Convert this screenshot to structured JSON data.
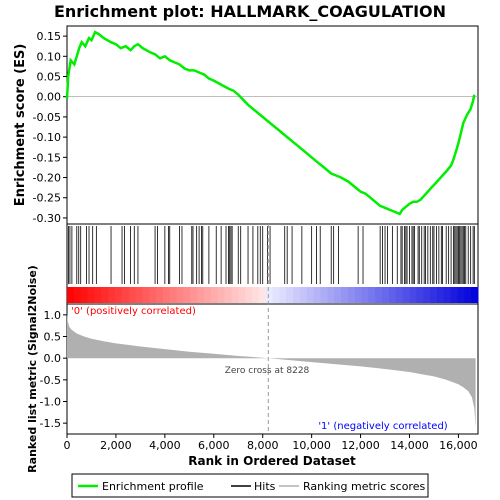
{
  "chart_data": {
    "type": "line",
    "title": "Enrichment plot: HALLMARK_COAGULATION",
    "xlabel": "Rank in Ordered Dataset",
    "x_range": [
      0,
      16800
    ],
    "x_ticks": [
      0,
      2000,
      4000,
      6000,
      8000,
      10000,
      12000,
      14000,
      16000
    ],
    "x_tick_labels": [
      "0",
      "2,000",
      "4,000",
      "6,000",
      "8,000",
      "10,000",
      "12,000",
      "14,000",
      "16,000"
    ],
    "es_panel": {
      "ylabel": "Enrichment score (ES)",
      "ylim": [
        -0.315,
        0.175
      ],
      "y_ticks": [
        0.15,
        0.1,
        0.05,
        0.0,
        -0.05,
        -0.1,
        -0.15,
        -0.2,
        -0.25,
        -0.3
      ],
      "y_tick_labels": [
        "0.15",
        "0.10",
        "0.05",
        "0.00",
        "-0.05",
        "-0.10",
        "-0.15",
        "-0.20",
        "-0.25",
        "-0.30"
      ],
      "grid": false,
      "series": [
        {
          "name": "Enrichment profile",
          "color": "#00ee00",
          "x": [
            0,
            50,
            150,
            300,
            400,
            500,
            600,
            750,
            900,
            1000,
            1150,
            1300,
            1500,
            1800,
            2000,
            2200,
            2400,
            2600,
            2750,
            2900,
            3100,
            3400,
            3600,
            3800,
            4000,
            4200,
            4400,
            4600,
            4800,
            5000,
            5200,
            5400,
            5600,
            5800,
            6000,
            6300,
            6600,
            6800,
            7000,
            7400,
            7800,
            8200,
            8600,
            9000,
            9400,
            9800,
            10200,
            10500,
            10800,
            11000,
            11200,
            11500,
            11800,
            12000,
            12200,
            12400,
            12600,
            12800,
            13000,
            13200,
            13400,
            13600,
            13700,
            13800,
            13900,
            14000,
            14150,
            14300,
            14450,
            14600,
            14750,
            14900,
            15050,
            15200,
            15350,
            15500,
            15700,
            15800,
            15900,
            16000,
            16100,
            16200,
            16350,
            16500,
            16600,
            16650
          ],
          "y": [
            -0.005,
            0.05,
            0.09,
            0.08,
            0.1,
            0.12,
            0.135,
            0.125,
            0.145,
            0.14,
            0.16,
            0.155,
            0.145,
            0.135,
            0.13,
            0.12,
            0.125,
            0.115,
            0.125,
            0.13,
            0.12,
            0.11,
            0.105,
            0.095,
            0.1,
            0.09,
            0.085,
            0.08,
            0.07,
            0.065,
            0.065,
            0.06,
            0.055,
            0.045,
            0.04,
            0.03,
            0.02,
            0.015,
            0.005,
            -0.02,
            -0.04,
            -0.06,
            -0.08,
            -0.1,
            -0.12,
            -0.14,
            -0.16,
            -0.175,
            -0.19,
            -0.195,
            -0.2,
            -0.21,
            -0.225,
            -0.235,
            -0.24,
            -0.25,
            -0.26,
            -0.27,
            -0.275,
            -0.28,
            -0.285,
            -0.29,
            -0.28,
            -0.275,
            -0.27,
            -0.265,
            -0.26,
            -0.26,
            -0.255,
            -0.245,
            -0.235,
            -0.225,
            -0.215,
            -0.205,
            -0.195,
            -0.185,
            -0.17,
            -0.155,
            -0.135,
            -0.115,
            -0.09,
            -0.065,
            -0.045,
            -0.03,
            -0.01,
            0.005
          ]
        }
      ]
    },
    "hits_panel": {
      "label": "Hits",
      "hit_positions": [
        60,
        120,
        200,
        400,
        480,
        560,
        800,
        900,
        1050,
        1200,
        1800,
        2250,
        2350,
        2600,
        2750,
        2900,
        3600,
        3700,
        4000,
        4150,
        4200,
        4600,
        4700,
        5100,
        5150,
        5300,
        5400,
        5500,
        5550,
        5800,
        6100,
        6300,
        6500,
        6600,
        6650,
        6700,
        6750,
        7000,
        7100,
        7400,
        7600,
        7800,
        7900,
        8000,
        8200,
        8300,
        8900,
        9000,
        9200,
        9600,
        10000,
        10200,
        10350,
        10800,
        10900,
        11100,
        11900,
        12100,
        12800,
        12900,
        13000,
        13100,
        13300,
        13500,
        13650,
        13700,
        13800,
        13850,
        13900,
        14000,
        14100,
        14150,
        14200,
        14350,
        14400,
        14500,
        14600,
        14650,
        14750,
        14850,
        14950,
        15000,
        15100,
        15200,
        15300,
        15350,
        15500,
        15600,
        15700,
        15800,
        15850,
        15900,
        15950,
        16000,
        16050,
        16100,
        16150,
        16200,
        16250,
        16300,
        16400,
        16500,
        16600,
        16650
      ]
    },
    "ranking_panel": {
      "ylabel": "Ranked list metric (Signal2Noise)",
      "ylim": [
        -1.75,
        1.25
      ],
      "y_ticks": [
        1.0,
        0.5,
        0.0,
        -0.5,
        -1.0,
        -1.5
      ],
      "y_tick_labels": [
        "1.0",
        "0.5",
        "0.0",
        "-0.5",
        "-1.0",
        "-1.5"
      ],
      "series_name": "Ranking metric scores",
      "x": [
        0,
        30,
        100,
        200,
        400,
        700,
        1000,
        1500,
        2000,
        3000,
        4000,
        5000,
        6000,
        7000,
        8000,
        8228,
        9000,
        10000,
        11000,
        12000,
        13000,
        14000,
        14500,
        15000,
        15500,
        16000,
        16200,
        16400,
        16550,
        16650,
        16700
      ],
      "y": [
        1.05,
        0.85,
        0.72,
        0.65,
        0.57,
        0.5,
        0.45,
        0.39,
        0.34,
        0.27,
        0.21,
        0.15,
        0.1,
        0.05,
        0.01,
        0.0,
        -0.04,
        -0.09,
        -0.14,
        -0.19,
        -0.25,
        -0.32,
        -0.37,
        -0.42,
        -0.5,
        -0.6,
        -0.67,
        -0.76,
        -0.9,
        -1.15,
        -1.6
      ],
      "zero_cross_label": "Zero cross at 8228",
      "zero_cross_x": 8228,
      "pos_label": "'0' (positively correlated)",
      "neg_label": "'1' (negatively correlated)"
    },
    "legend": {
      "placement": "bottom",
      "entries": [
        "Enrichment profile",
        "Hits",
        "Ranking metric scores"
      ]
    },
    "colors": {
      "es_line": "#00ee00",
      "hit": "#000000",
      "ranking_fill": "#b0b0b0",
      "pos_end": "#ff0000",
      "neg_end": "#0000ff",
      "pos_label": "#ff0000",
      "neg_label": "#0000ff"
    }
  }
}
